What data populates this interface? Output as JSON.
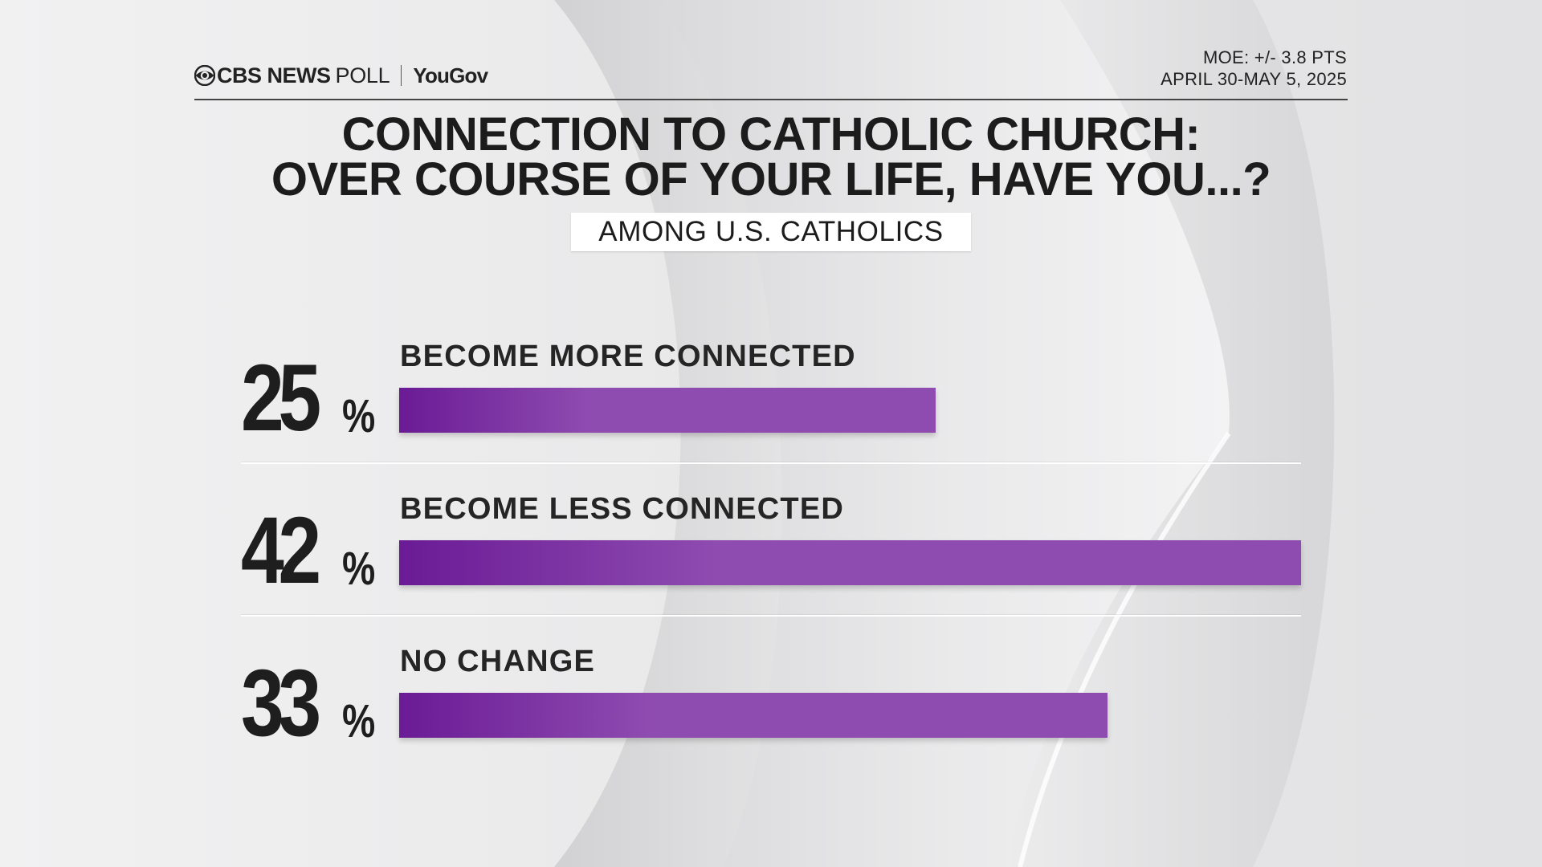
{
  "header": {
    "brand_cbs": "CBS NEWS",
    "brand_poll": "POLL",
    "brand_partner": "YouGov",
    "moe": "MOE: +/- 3.8 PTS",
    "dates": "APRIL 30-MAY 5, 2025"
  },
  "title_line1": "CONNECTION TO CATHOLIC CHURCH:",
  "title_line2": "OVER COURSE OF YOUR LIFE, HAVE YOU...?",
  "subtitle": "AMONG U.S. CATHOLICS",
  "colors": {
    "bar_start": "#6a1b95",
    "bar_end": "#8e4bb0",
    "text": "#1e1e1e"
  },
  "chart_data": {
    "type": "bar",
    "orientation": "horizontal",
    "title": "CONNECTION TO CATHOLIC CHURCH: OVER COURSE OF YOUR LIFE, HAVE YOU...?",
    "subtitle": "AMONG U.S. CATHOLICS",
    "categories": [
      "BECOME MORE CONNECTED",
      "BECOME LESS CONNECTED",
      "NO CHANGE"
    ],
    "values": [
      25,
      42,
      33
    ],
    "value_labels": [
      "25",
      "42",
      "33"
    ],
    "unit": "%",
    "xlim": [
      0,
      42
    ],
    "grid": false,
    "legend": "none"
  }
}
